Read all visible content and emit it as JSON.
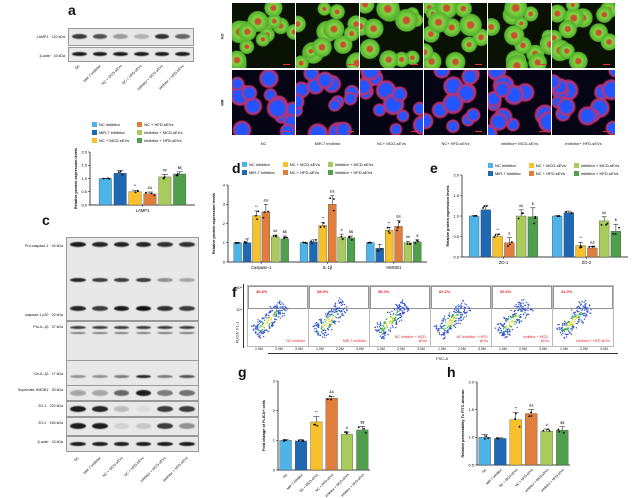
{
  "panel_labels": [
    "a",
    "b",
    "c",
    "d",
    "e",
    "f",
    "g",
    "h"
  ],
  "groups": [
    "NC inhibitor",
    "MiR-7 inhibitor",
    "NC + MCD-sEVs",
    "NC + HFD-sEVs",
    "inhibitor + MCD-sEVs",
    "inhibitor + HFD-sEVs"
  ],
  "lane_labels": [
    "NC",
    "MiR-7 inhibitor",
    "NC + MCD-sEVs",
    "NC + HFD-sEVs",
    "inhibitor + MCD-sEVs",
    "inhibitor + HFD-sEVs"
  ],
  "colors": [
    "#4db3e9",
    "#1f68b3",
    "#f6c12c",
    "#e07f3d",
    "#a9cb5b",
    "#4f9f4c"
  ],
  "panel_a": {
    "blots": [
      "LAMP1 · 120 kDa",
      "β-actin · 43 kDa"
    ]
  },
  "panel_b": {
    "rows": [
      "AO",
      "MR"
    ],
    "columns": [
      "NC",
      "MiR-7 inhibitor",
      "NC+ MCD-sEVs",
      "NC+ HFD-sEVs",
      "inhibitor+ MCD-sEVs",
      "inhibitor+ HFD-sEVs"
    ]
  },
  "panel_c": {
    "blots": [
      "Pro-caspase-1 · 45 kDa",
      "caspase-1 p20 · 20 kDa",
      "Pro-IL-1β · 37 kDa",
      "Cle-IL-1β · 17 kDa",
      "Supernate-HMGB1 · 30 kDa",
      "ZO-1 · 220 kDa",
      "ZO-2 · 160 kDa",
      "β-actin · 43 kDa"
    ]
  },
  "panel_f": {
    "percentages": [
      "36.8%",
      "38.0%",
      "55.4%",
      "60.2%",
      "36.6%",
      "41.3%"
    ],
    "labels": [
      "NC inhibitor",
      "MiR-7 inhibitor",
      "NC inhibitor + MCD-sEVs",
      "NC inhibitor + HFD-sEVs",
      "inhibitor + MCD-sEVs",
      "inhibitor + HFD-sEVs"
    ],
    "xticks": [
      "1.0M",
      "2.0M",
      "3.0M"
    ],
    "yticks": [
      "10⁵",
      "10⁴"
    ],
    "xlabel": "FSC-A",
    "ylabel": "FLICA: FL-1"
  },
  "chart_data": [
    {
      "id": "a",
      "type": "bar",
      "categories": [
        "LAMP1"
      ],
      "ylabel": "Relative protein expression levels",
      "ylim": [
        0,
        2.0
      ],
      "yticks": [
        "0.0",
        "0.5",
        "1.0",
        "1.5",
        "2.0"
      ],
      "series_values": [
        [
          1.0
        ],
        [
          1.2
        ],
        [
          0.5
        ],
        [
          0.42
        ],
        [
          1.06
        ],
        [
          1.17
        ]
      ],
      "errors": [
        [
          0.01
        ],
        [
          0.1
        ],
        [
          0.06
        ],
        [
          0.07
        ],
        [
          0.1
        ],
        [
          0.08
        ]
      ],
      "sig": [
        [
          ""
        ],
        [
          ""
        ],
        [
          "**"
        ],
        [
          "&&"
        ],
        [
          "##"
        ],
        [
          "$$"
        ]
      ]
    },
    {
      "id": "d",
      "type": "bar",
      "categories": [
        "Caspase-1",
        "IL-1β",
        "HMGB1"
      ],
      "ylabel": "Relative protein expression levels",
      "ylim": [
        0,
        4
      ],
      "yticks": [
        "0",
        "1",
        "2",
        "3",
        "4"
      ],
      "series_values": [
        [
          1.0,
          1.0,
          1.0
        ],
        [
          1.0,
          1.05,
          0.72
        ],
        [
          2.4,
          1.9,
          1.65
        ],
        [
          2.6,
          3.0,
          1.85
        ],
        [
          1.3,
          1.3,
          1.0
        ],
        [
          1.2,
          1.25,
          1.05
        ]
      ],
      "errors": [
        [
          0.02,
          0.02,
          0.02
        ],
        [
          0.2,
          0.1,
          0.2
        ],
        [
          0.25,
          0.15,
          0.15
        ],
        [
          0.4,
          0.45,
          0.3
        ],
        [
          0.1,
          0.15,
          0.08
        ],
        [
          0.15,
          0.1,
          0.1
        ]
      ],
      "sig": [
        [
          "",
          "",
          ""
        ],
        [
          "",
          "",
          ""
        ],
        [
          "**",
          "**",
          "**"
        ],
        [
          "&&",
          "&&",
          "&&"
        ],
        [
          "##",
          "#",
          "##"
        ],
        [
          "$$",
          "$$",
          "$"
        ]
      ]
    },
    {
      "id": "e",
      "type": "bar",
      "categories": [
        "ZO-1",
        "ZO-2"
      ],
      "ylabel": "Relative protein expression levels",
      "ylim": [
        0,
        2.0
      ],
      "yticks": [
        "0.0",
        "0.5",
        "1.0",
        "1.5",
        "2.0"
      ],
      "series_values": [
        [
          1.0,
          1.0
        ],
        [
          1.15,
          1.08
        ],
        [
          0.5,
          0.28
        ],
        [
          0.35,
          0.22
        ],
        [
          1.0,
          0.88
        ],
        [
          0.98,
          0.63
        ]
      ],
      "errors": [
        [
          0.01,
          0.01
        ],
        [
          0.1,
          0.04
        ],
        [
          0.06,
          0.08
        ],
        [
          0.12,
          0.04
        ],
        [
          0.15,
          0.1
        ],
        [
          0.22,
          0.17
        ]
      ],
      "sig": [
        [
          "",
          ""
        ],
        [
          "",
          ""
        ],
        [
          "**",
          "**"
        ],
        [
          "&",
          "&&"
        ],
        [
          "##",
          "##"
        ],
        [
          "$",
          "$"
        ]
      ]
    },
    {
      "id": "g",
      "type": "bar",
      "categories": [
        "NC",
        "MiR-7 inhibitor",
        "NC + MCD-sEVs",
        "NC + HFD-sEVs",
        "inhibitor + MCD-sEVs",
        "inhibitor + HFD-sEVs"
      ],
      "ylabel": "Fold change of FLICA+ cells",
      "ylim": [
        0,
        3
      ],
      "yticks": [
        "0",
        "1",
        "2",
        "3"
      ],
      "values": [
        1.0,
        0.98,
        1.62,
        2.42,
        1.2,
        1.35
      ],
      "errors": [
        0.03,
        0.05,
        0.18,
        0.07,
        0.08,
        0.12
      ],
      "sig": [
        "",
        "",
        "**",
        "&&",
        "#",
        "$$"
      ]
    },
    {
      "id": "h",
      "type": "bar",
      "categories": [
        "NC",
        "MiR-7 inhibitor",
        "NC + MCD-sEVs",
        "NC + HFD-sEVs",
        "inhibitor + MCD-sEVs",
        "inhibitor + HFD-sEVs"
      ],
      "ylabel": "Relative permeability To FITC-dextran",
      "ylim": [
        0.5,
        2.0
      ],
      "yticks": [
        "0.5",
        "1.0",
        "1.5",
        "2.0"
      ],
      "values": [
        1.0,
        0.98,
        1.32,
        1.43,
        1.11,
        1.13
      ],
      "errors": [
        0.05,
        0.01,
        0.13,
        0.07,
        0.04,
        0.06
      ],
      "sig": [
        "",
        "",
        "**",
        "&&",
        "#",
        "$$"
      ]
    }
  ]
}
